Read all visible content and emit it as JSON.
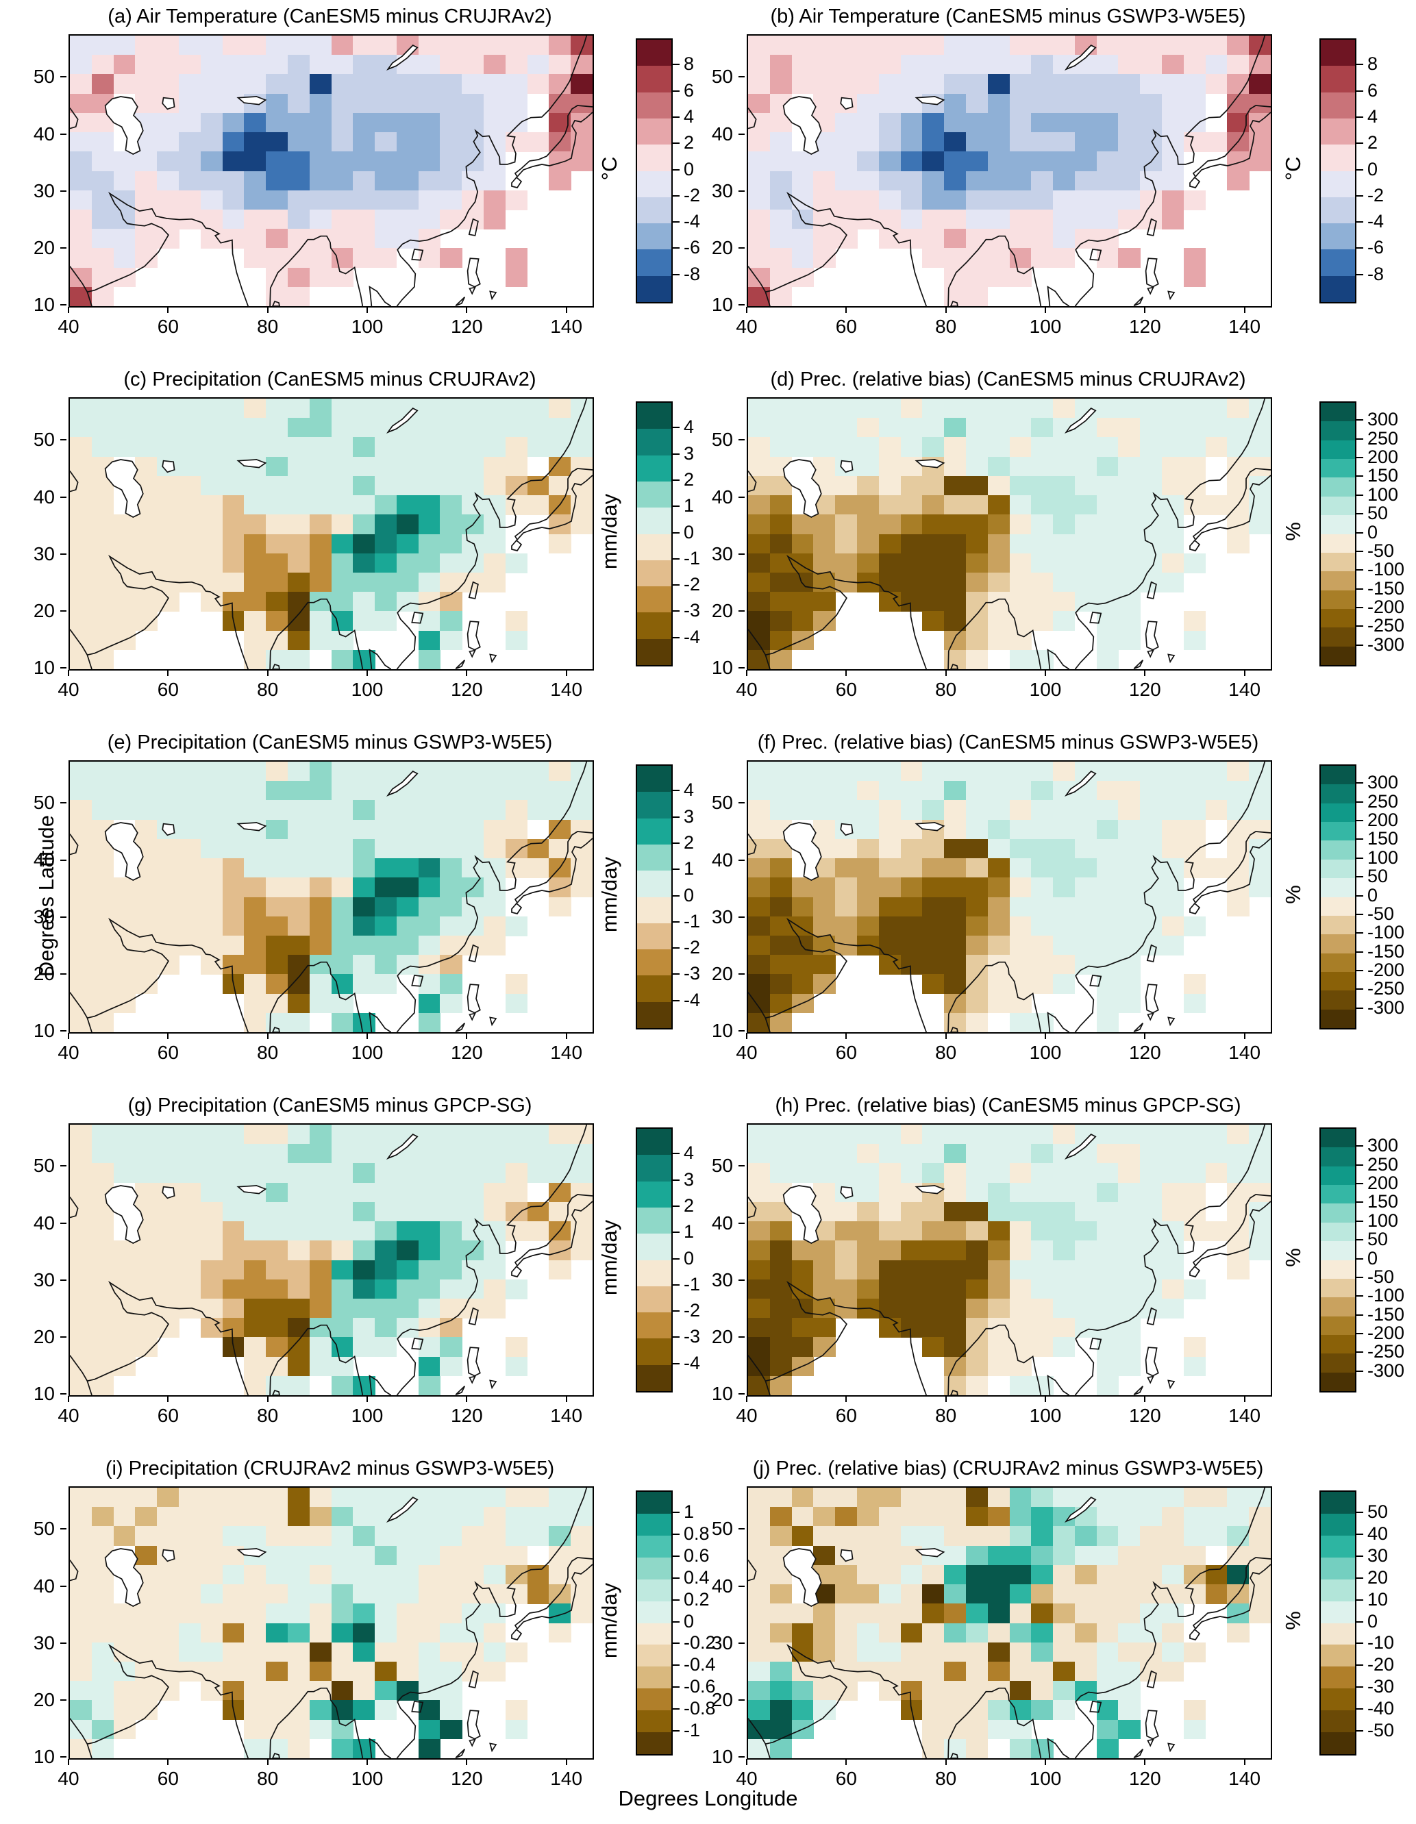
{
  "figure": {
    "xlabel": "Degrees Longitude",
    "ylabel": "Degrees Latitude"
  },
  "chart_data": {
    "type": "heatmap",
    "description": "10-panel gridded map figure over Asia comparing CanESM5 model output against reference datasets; grids are coarse level-index approximations of each panel's cell colors ('.' = white / no data, chars index into palette colors from lowest to highest bin)",
    "x_ticks": [
      40,
      60,
      80,
      100,
      120,
      140
    ],
    "y_ticks": [
      50,
      40,
      30,
      20,
      10
    ],
    "lon_range": [
      40,
      145
    ],
    "lat_range": [
      10,
      57.5
    ],
    "grid_no_data_char": ".",
    "palettes": {
      "temp": {
        "colors": [
          "#16427f",
          "#3d74b4",
          "#8fb0d6",
          "#c6d1e8",
          "#e4e6f4",
          "#f9e0e1",
          "#e6a6aa",
          "#c97379",
          "#ab424a",
          "#6f1523"
        ],
        "levels": [
          "< -8",
          "-8 to -6",
          "-6 to -4",
          "-4 to -2",
          "-2 to 0",
          "0 to 2",
          "2 to 4",
          "4 to 6",
          "6 to 8",
          "> 8"
        ]
      },
      "mmday": {
        "colors": [
          "#5a3d05",
          "#8a6108",
          "#bf8c3a",
          "#e2bd8d",
          "#f6e8d2",
          "#d9f0ea",
          "#8fd8c8",
          "#1aa896",
          "#0f8276",
          "#07584c"
        ],
        "levels": [
          "< -4",
          "-4 to -3",
          "-3 to -2",
          "-2 to -1",
          "-1 to 0",
          "0 to 1",
          "1 to 2",
          "2 to 3",
          "3 to 4",
          "> 4"
        ]
      },
      "pct300": {
        "colors": [
          "#4a3204",
          "#6b4a06",
          "#8a6108",
          "#a87e27",
          "#c9a25f",
          "#e5cb9f",
          "#f7ebd8",
          "#def2ed",
          "#bce8de",
          "#8ad7c8",
          "#35b7a5",
          "#109a89",
          "#0c7c6d",
          "#07584c"
        ],
        "levels": [
          "< -300",
          "-300 to -250",
          "-250 to -200",
          "-200 to -150",
          "-150 to -100",
          "-100 to -50",
          "-50 to 0",
          "0 to 50",
          "50 to 100",
          "100 to 150",
          "150 to 200",
          "200 to 250",
          "250 to 300",
          "> 300"
        ]
      },
      "mmday1": {
        "colors": [
          "#5a3d05",
          "#8a6108",
          "#b07f2a",
          "#d9b87e",
          "#ecd4ae",
          "#f6ead6",
          "#dcf2ec",
          "#bfe9df",
          "#8fd8c8",
          "#4cc3b2",
          "#18a392",
          "#07584c"
        ],
        "levels": [
          "< -1",
          "-1 to -0.8",
          "-0.8 to -0.6",
          "-0.6 to -0.4",
          "-0.4 to -0.2",
          "-0.2 to 0",
          "0 to 0.2",
          "0.2 to 0.4",
          "0.4 to 0.6",
          "0.6 to 0.8",
          "0.8 to 1",
          "> 1"
        ]
      },
      "pct50": {
        "colors": [
          "#4a3204",
          "#6b4a06",
          "#8a6108",
          "#b07f2a",
          "#d9b87e",
          "#f3e6d0",
          "#def2ed",
          "#b2e5d9",
          "#74cfc0",
          "#2db5a2",
          "#0f8e7d",
          "#07584c"
        ],
        "levels": [
          "< -50",
          "-50 to -40",
          "-40 to -30",
          "-30 to -20",
          "-20 to -10",
          "-10 to 0",
          "0 to 10",
          "10 to 20",
          "20 to 30",
          "30 to 40",
          "40 to 50",
          "> 50"
        ]
      }
    },
    "panels": [
      {
        "id": "a",
        "title": "(a) Air Temperature (CanESM5 minus CRUJRAv2)",
        "unit": "°C",
        "palette": "temp",
        "cb_ticks": [
          "8",
          "6",
          "4",
          "2",
          "0",
          "-2",
          "-4",
          "-6",
          "-8"
        ],
        "grid": [
          "444554455444655655555568",
          "456555444434433445565456",
          "575554444330333333444569",
          "66.554443232333333344.77",
          "55.444321222322223344.86",
          "44.443310022323223345576",
          "34443320011222222334..66",
          "33454333211223223344..6.",
          "433555432233333344565...",
          "53355554553455444556....",
          "54455.55565555445.......",
          "5545....5555655.56..6...",
          "655......5655.......6...",
          "85.......55............."
        ]
      },
      {
        "id": "b",
        "title": "(b) Air Temperature (CanESM5 minus GSWP3-W5E5)",
        "unit": "°C",
        "palette": "temp",
        "cb_ticks": [
          "8",
          "6",
          "4",
          "2",
          "0",
          "-2",
          "-4",
          "-6",
          "-8"
        ],
        "grid": [
          "555555555444555655555568",
          "565555544444434445565456",
          "565555444330333333444569",
          "65.554443232333333344.77",
          "55.544321222322223344.86",
          "54.444321022333223345576",
          "44444321011222223334..66",
          "43454433212223233344..6.",
          "434555432233334444565...",
          "54355554554455444556....",
          "54455.55565555455.......",
          "5545....5555655.56..6...",
          "655......5555.......6...",
          "85.......55............."
        ]
      },
      {
        "id": "c",
        "title": "(c) Precipitation (CanESM5 minus CRUJRAv2)",
        "unit": "mm/day",
        "palette": "mmday",
        "cb_ticks": [
          "4",
          "3",
          "2",
          "1",
          "0",
          "-1",
          "-2",
          "-3",
          "-4"
        ],
        "grid": [
          "555555554556555555555545",
          "555555555566555555555555",
          "455555555555565555554555",
          "44.455555655555555544.24",
          "44.444555555565555543244",
          "44.444435555556776554424",
          "44444443344346897665..34",
          "44444443233279876655..4.",
          "444444432232687665545...",
          "44444444221266665444....",
          "44444.422106656543......",
          "4444...14205755.56..4...",
          "444.....44155...75..5...",
          "44......455.67..6......."
        ]
      },
      {
        "id": "d",
        "title": "(d) Prec. (relative bias) (CanESM5 minus CRUJRAv2)",
        "unit": "%",
        "palette": "pct300",
        "cb_ticks": [
          "300",
          "250",
          "200",
          "150",
          "100",
          "50",
          "0",
          "-50",
          "-100",
          "-150",
          "-200",
          "-250",
          "-300"
        ],
        "grid": [
          "777777767777776777777767",
          "777776777977787766777777",
          "677777678677677776777677",
          "66.677665678777787766.66",
          "55.665655116888777766.67",
          "43.544554552788877776667",
          "32445443222367877777..67",
          "21345421112477777777..6.",
          "122443111134677777767...",
          "21134211114566777777....",
          "1222..211156666777......",
          "0124....2156667.77..6...",
          "024......4566...77..7...",
          "14.......56.77..7......."
        ]
      },
      {
        "id": "e",
        "title": "(e) Precipitation (CanESM5 minus GSWP3-W5E5)",
        "unit": "mm/day",
        "palette": "mmday",
        "cb_ticks": [
          "4",
          "3",
          "2",
          "1",
          "0",
          "-1",
          "-2",
          "-3",
          "-4"
        ],
        "grid": [
          "555555555456555555555545",
          "555555555666555555555555",
          "455555555555565555554555",
          "44.455555655555555544.24",
          "44.444555555565555543244",
          "44.444435555567786554424",
          "44444443344347997665..34",
          "44444443233269876655..4.",
          "444444432232687665545...",
          "44444444211266665444....",
          "44444.422106656543......",
          "4444...14205755.56..4...",
          "444.....44155...75..5...",
          "44......455.67..6......."
        ]
      },
      {
        "id": "f",
        "title": "(f) Prec. (relative bias) (CanESM5 minus GSWP3-W5E5)",
        "unit": "%",
        "palette": "pct300",
        "cb_ticks": [
          "300",
          "250",
          "200",
          "150",
          "100",
          "50",
          "0",
          "-50",
          "-100",
          "-150",
          "-200",
          "-250",
          "-300"
        ],
        "grid": [
          "777777767777776777777767",
          "777776777977787766777777",
          "677777678677677776777677",
          "66.677665678777787766.66",
          "55.665655117888777766.67",
          "43.544554452788877776667",
          "32445443222367877777..67",
          "21345422112477777777..6.",
          "122443111134677777767...",
          "21134211114566777777....",
          "1222..211156666777......",
          "0124....2156667.77..6...",
          "024......4566...77..7...",
          "14.......56.77..7......."
        ]
      },
      {
        "id": "g",
        "title": "(g) Precipitation (CanESM5 minus GPCP-SG)",
        "unit": "mm/day",
        "palette": "mmday",
        "cb_ticks": [
          "4",
          "3",
          "2",
          "1",
          "0",
          "-1",
          "-2",
          "-3",
          "-4"
        ],
        "grid": [
          "455555554456555555555544",
          "455555555566555555555555",
          "445555555555565555554555",
          "44.444555655555555544.24",
          "44.444455555565555543244",
          "44.444435555556776554424",
          "44444443334346897665..34",
          "44444433233279876655..4.",
          "444444322232687665545...",
          "44444443111266665444....",
          "44444.321106656543......",
          "4444...04215755.56..4...",
          "444.....44155...75..5...",
          "44......455.67..6......."
        ]
      },
      {
        "id": "h",
        "title": "(h) Prec. (relative bias) (CanESM5 minus GPCP-SG)",
        "unit": "%",
        "palette": "pct300",
        "cb_ticks": [
          "300",
          "250",
          "200",
          "150",
          "100",
          "50",
          "0",
          "-50",
          "-100",
          "-150",
          "-200",
          "-250",
          "-300"
        ],
        "grid": [
          "777777767777776777777767",
          "777776777977787766777777",
          "677777678677677776777677",
          "66.677665678777787766.66",
          "55.665655118888777766.67",
          "43.544554452688877776667",
          "31445442221367877777..67",
          "21245411111477777777..6.",
          "112443111124677777767...",
          "21134211114566777777....",
          "1122..211156666777......",
          "0114....2156667.77..6...",
          "014......4566...77..7...",
          "14.......56.77..7......."
        ]
      },
      {
        "id": "i",
        "title": "(i) Precipitation (CRUJRAv2 minus GSWP3-W5E5)",
        "unit": "mm/day",
        "palette": "mmday1",
        "cb_ticks": [
          "1",
          "0.8",
          "0.6",
          "0.4",
          "0.2",
          "0",
          "-0.2",
          "-0.4",
          "-0.6",
          "-0.8",
          "-1"
        ],
        "grid": [
          "555535555515666666665566",
          "535355555513866666656666",
          "553555566555686666556685",
          "55.255556666668665555.55",
          "55.555565665666655563255",
          "55.555655566866655555235",
          "55555555566589655566..a5",
          "555556525a95ab655665..5.",
          "5655566555505a5565565...",
          "56655555525255156655....",
          "66555.525555059b66......",
          "8655...15559ba6.b6..5...",
          "685.....55568...ab..6...",
          "56......665.9a..b......."
        ]
      },
      {
        "id": "j",
        "title": "(j) Prec. (relative bias) (CRUJRAv2 minus GSWP3-W5E5)",
        "unit": "%",
        "palette": "pct50",
        "cb_ticks": [
          "50",
          "40",
          "30",
          "20",
          "10",
          "0",
          "-10",
          "-20",
          "-30",
          "-40",
          "-50"
        ],
        "grid": [
          "554554455515876666665566",
          "535434555523898766656665",
          "542555566555797876556675",
          "55.155556689987665555.55",
          "55.4455659bbb954555642b5",
          "54.0446508bb945555555345",
          "55545555239b52455566..85",
          "54245652587589545665..5.",
          "552456655551585565565...",
          "68555555535355256655....",
          "89855.535555157966......",
          "9b96...25557986.96..5...",
          "bb8.....55566...89..6...",
          "68......565.78..9......."
        ]
      }
    ]
  }
}
